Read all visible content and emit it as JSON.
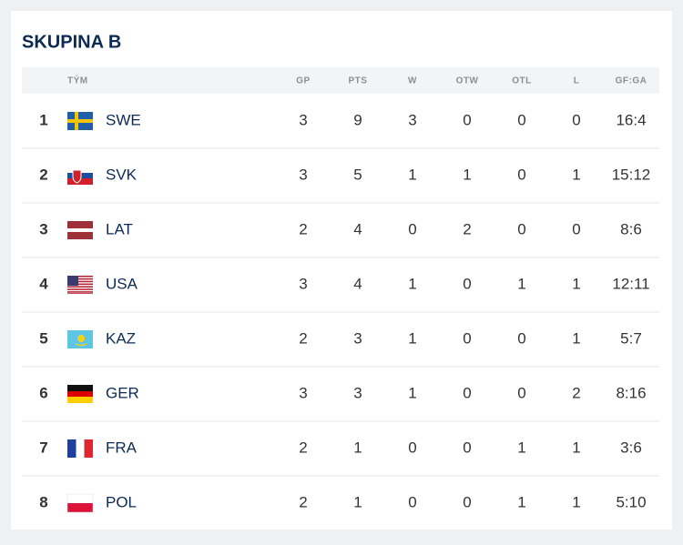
{
  "header": {
    "title": "SKUPINA B"
  },
  "table": {
    "columns": [
      "TÝM",
      "GP",
      "PTS",
      "W",
      "OTW",
      "OTL",
      "L",
      "GF:GA"
    ],
    "rows": [
      [
        1,
        "SWE",
        3,
        9,
        3,
        0,
        0,
        0,
        "16:4"
      ],
      [
        2,
        "SVK",
        3,
        5,
        1,
        1,
        0,
        1,
        "15:12"
      ],
      [
        3,
        "LAT",
        2,
        4,
        0,
        2,
        0,
        0,
        "8:6"
      ],
      [
        4,
        "USA",
        3,
        4,
        1,
        0,
        1,
        1,
        "12:11"
      ],
      [
        5,
        "KAZ",
        2,
        3,
        1,
        0,
        0,
        1,
        "5:7"
      ],
      [
        6,
        "GER",
        3,
        3,
        1,
        0,
        0,
        2,
        "8:16"
      ],
      [
        7,
        "FRA",
        2,
        1,
        0,
        0,
        1,
        1,
        "3:6"
      ],
      [
        8,
        "POL",
        2,
        1,
        0,
        0,
        1,
        1,
        "5:10"
      ]
    ]
  }
}
